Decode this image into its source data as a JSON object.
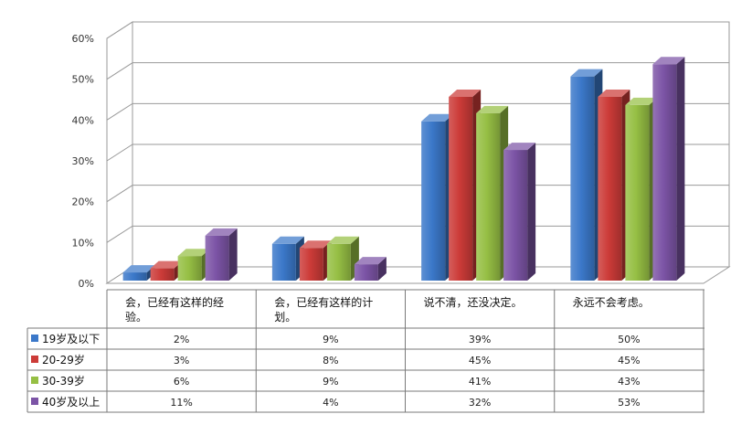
{
  "chart_data": {
    "type": "bar",
    "categories": [
      [
        "会，已经有这样的经",
        "验。"
      ],
      [
        "会，已经有这样的计",
        "划。"
      ],
      [
        "说不清，还没决定。"
      ],
      [
        "永远不会考虑。"
      ]
    ],
    "series": [
      {
        "name": "19岁及以下",
        "values": [
          2,
          9,
          39,
          50
        ],
        "labels": [
          "2%",
          "9%",
          "39%",
          "50%"
        ],
        "color": "#3b78c9"
      },
      {
        "name": "20-29岁",
        "values": [
          3,
          8,
          45,
          45
        ],
        "labels": [
          "3%",
          "8%",
          "45%",
          "45%"
        ],
        "color": "#cc3b38"
      },
      {
        "name": "30-39岁",
        "values": [
          6,
          9,
          41,
          43
        ],
        "labels": [
          "6%",
          "9%",
          "41%",
          "43%"
        ],
        "color": "#96bf44"
      },
      {
        "name": "40岁及以上",
        "values": [
          11,
          4,
          32,
          53
        ],
        "labels": [
          "11%",
          "4%",
          "32%",
          "53%"
        ],
        "color": "#7c54a6"
      }
    ],
    "y_ticks": [
      "0%",
      "10%",
      "20%",
      "30%",
      "40%",
      "50%",
      "60%"
    ],
    "ylim": [
      0,
      60
    ],
    "grid": true,
    "legend": "data-table",
    "style": "3d-clustered-column"
  }
}
